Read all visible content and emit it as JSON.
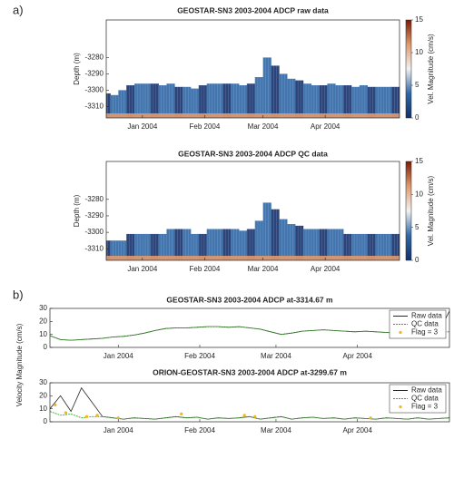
{
  "panel_labels": [
    "a)",
    "b)"
  ],
  "chart_data": [
    {
      "type": "heatmap",
      "title": "GEOSTAR-SN3 2003-2004 ADCP raw data",
      "ylabel": "Depth (m)",
      "zlabel": "Vel. Magnitude (cm/s)",
      "x": [
        -18,
        -14,
        -10,
        -6,
        -2,
        2,
        6,
        10,
        14,
        18,
        22,
        26,
        30,
        34,
        38,
        42,
        46,
        50,
        54,
        58,
        62,
        66,
        70,
        74,
        78,
        82,
        86,
        90,
        94,
        98,
        102,
        106,
        110,
        114,
        118,
        122,
        126
      ],
      "values": [
        -3302,
        -3303,
        -3300,
        -3297,
        -3296,
        -3296,
        -3296,
        -3297,
        -3296,
        -3298,
        -3298,
        -3299,
        -3297,
        -3296,
        -3296,
        -3296,
        -3296,
        -3297,
        -3296,
        -3292,
        -3280,
        -3285,
        -3290,
        -3293,
        -3294,
        -3296,
        -3297,
        -3297,
        -3296,
        -3297,
        -3297,
        -3298,
        -3297,
        -3298,
        -3298,
        -3298,
        -3298
      ],
      "xlim": [
        -18,
        128
      ],
      "xticks": [
        {
          "value": 0,
          "label": "Jan 2004"
        },
        {
          "value": 31,
          "label": "Feb 2004"
        },
        {
          "value": 60,
          "label": "Mar 2004"
        },
        {
          "value": 91,
          "label": "Apr 2004"
        }
      ],
      "ylim": [
        -3317,
        -3257
      ],
      "yticks": [
        -3280,
        -3290,
        -3300,
        -3310
      ],
      "zlim": [
        0,
        15
      ],
      "zticks": [
        0,
        5,
        10,
        15
      ],
      "colormap": [
        "#14306b",
        "#2f67a6",
        "#f2f2f2",
        "#e09a6e",
        "#7a1c05"
      ]
    },
    {
      "type": "heatmap",
      "title": "GEOSTAR-SN3 2003-2004 ADCP QC data",
      "ylabel": "Depth (m)",
      "zlabel": "Vel. Magnitude (cm/s)",
      "x": [
        -18,
        -14,
        -10,
        -6,
        -2,
        2,
        6,
        10,
        14,
        18,
        22,
        26,
        30,
        34,
        38,
        42,
        46,
        50,
        54,
        58,
        62,
        66,
        70,
        74,
        78,
        82,
        86,
        90,
        94,
        98,
        102,
        106,
        110,
        114,
        118,
        122,
        126
      ],
      "values": [
        -3305,
        -3305,
        -3305,
        -3301,
        -3301,
        -3301,
        -3301,
        -3301,
        -3298,
        -3298,
        -3298,
        -3301,
        -3301,
        -3298,
        -3298,
        -3298,
        -3298,
        -3299,
        -3298,
        -3293,
        -3282,
        -3286,
        -3292,
        -3295,
        -3296,
        -3298,
        -3298,
        -3298,
        -3298,
        -3298,
        -3301,
        -3301,
        -3301,
        -3301,
        -3301,
        -3301,
        -3301
      ],
      "xlim": [
        -18,
        128
      ],
      "xticks": [
        {
          "value": 0,
          "label": "Jan 2004"
        },
        {
          "value": 31,
          "label": "Feb 2004"
        },
        {
          "value": 60,
          "label": "Mar 2004"
        },
        {
          "value": 91,
          "label": "Apr 2004"
        }
      ],
      "ylim": [
        -3317,
        -3257
      ],
      "yticks": [
        -3280,
        -3290,
        -3300,
        -3310
      ],
      "zlim": [
        0,
        15
      ],
      "zticks": [
        0,
        5,
        10,
        15
      ],
      "colormap": [
        "#14306b",
        "#2f67a6",
        "#f2f2f2",
        "#e09a6e",
        "#7a1c05"
      ]
    },
    {
      "type": "line",
      "title": "GEOSTAR-SN3 2003-2004 ADCP at-3314.67 m",
      "ylabel": "Velocity Magnitude (cm/s)",
      "legend": "upper right",
      "xlim": [
        -26,
        126
      ],
      "xticks": [
        {
          "value": 0,
          "label": "Jan 2004"
        },
        {
          "value": 31,
          "label": "Feb 2004"
        },
        {
          "value": 60,
          "label": "Mar 2004"
        },
        {
          "value": 91,
          "label": "Apr 2004"
        }
      ],
      "ylim": [
        0,
        30
      ],
      "yticks": [
        0,
        10,
        20,
        30
      ],
      "series": [
        {
          "name": "Raw data",
          "color": "#262626",
          "style": "solid",
          "x": [
            -26,
            -22,
            -18,
            -14,
            -10,
            -6,
            -2,
            2,
            6,
            10,
            14,
            18,
            22,
            26,
            30,
            34,
            38,
            42,
            46,
            50,
            54,
            58,
            62,
            66,
            70,
            74,
            78,
            82,
            86,
            90,
            94,
            98,
            102,
            106,
            110,
            114,
            118,
            122,
            126
          ],
          "values": [
            9,
            6,
            5.5,
            6,
            6.5,
            7,
            8,
            8.5,
            9.5,
            11,
            13,
            14.5,
            15,
            15,
            15.5,
            16,
            16,
            15.5,
            16,
            15,
            14,
            12,
            10,
            11,
            12.5,
            13,
            13.5,
            13,
            12.5,
            12,
            12.5,
            12,
            11.5,
            11,
            11,
            10.5,
            11,
            12,
            28
          ]
        },
        {
          "name": "QC data",
          "color": "#3aa32a",
          "style": "dashed",
          "x": [
            -26,
            -22,
            -18,
            -14,
            -10,
            -6,
            -2,
            2,
            6,
            10,
            14,
            18,
            22,
            26,
            30,
            34,
            38,
            42,
            46,
            50,
            54,
            58,
            62,
            66,
            70,
            74,
            78,
            82,
            86,
            90,
            94,
            98,
            102,
            106,
            110,
            114,
            118,
            122,
            126
          ],
          "values": [
            9,
            6,
            5.5,
            6,
            6.5,
            7,
            8,
            8.5,
            9.5,
            11,
            13,
            14.5,
            15,
            15,
            15.5,
            16,
            16,
            15.5,
            16,
            15,
            14,
            12,
            10,
            11,
            12.5,
            13,
            13.5,
            13,
            12.5,
            12,
            12.5,
            12,
            11.5,
            11,
            11,
            10.5,
            11,
            12,
            12
          ]
        },
        {
          "name": "Flag = 3",
          "color": "#f2b51a",
          "style": "points",
          "x": [
            118,
            124
          ],
          "values": [
            11,
            12
          ]
        }
      ]
    },
    {
      "type": "line",
      "title": "ORION-GEOSTAR-SN3 2003-2004 ADCP at-3299.67 m",
      "legend": "upper right",
      "xlim": [
        -26,
        126
      ],
      "xticks": [
        {
          "value": 0,
          "label": "Jan 2004"
        },
        {
          "value": 31,
          "label": "Feb 2004"
        },
        {
          "value": 60,
          "label": "Mar 2004"
        },
        {
          "value": 91,
          "label": "Apr 2004"
        }
      ],
      "ylim": [
        0,
        30
      ],
      "yticks": [
        0,
        10,
        20,
        30
      ],
      "series": [
        {
          "name": "Raw data",
          "color": "#262626",
          "style": "solid",
          "x": [
            -26,
            -22,
            -18,
            -14,
            -10,
            -6,
            -2,
            2,
            6,
            10,
            14,
            18,
            22,
            26,
            30,
            34,
            38,
            42,
            46,
            50,
            54,
            58,
            62,
            66,
            70,
            74,
            78,
            82,
            86,
            90,
            94,
            98,
            102,
            106,
            110,
            114,
            118,
            122,
            126
          ],
          "values": [
            10,
            20,
            8,
            26,
            15,
            4,
            3,
            2,
            3,
            2.5,
            2,
            3,
            4,
            3,
            3.5,
            2,
            3,
            2.5,
            3,
            4,
            2,
            3,
            4,
            2,
            3,
            3.5,
            2.5,
            3,
            2,
            3,
            2.5,
            2,
            3,
            2.5,
            2,
            3,
            2,
            2.5,
            3
          ]
        },
        {
          "name": "QC data",
          "color": "#3aa32a",
          "style": "dashed",
          "x": [
            -26,
            -22,
            -18,
            -14,
            -10,
            -6,
            -2,
            2,
            6,
            10,
            14,
            18,
            22,
            26,
            30,
            34,
            38,
            42,
            46,
            50,
            54,
            58,
            62,
            66,
            70,
            74,
            78,
            82,
            86,
            90,
            94,
            98,
            102,
            106,
            110,
            114,
            118,
            122,
            126
          ],
          "values": [
            8,
            5,
            6,
            3,
            4,
            4,
            3,
            2,
            3,
            2.5,
            2,
            3,
            4,
            3,
            3.5,
            2,
            3,
            2.5,
            3,
            4,
            2,
            3,
            4,
            2,
            3,
            3.5,
            2.5,
            3,
            2,
            3,
            2.5,
            2,
            3,
            2.5,
            2,
            3,
            2,
            2.5,
            3
          ]
        },
        {
          "name": "Flag = 3",
          "color": "#f2b51a",
          "style": "points",
          "x": [
            -24,
            -20,
            -12,
            -8,
            0,
            24,
            48,
            52,
            96
          ],
          "values": [
            13,
            7,
            4,
            5,
            3,
            6,
            5,
            4,
            3
          ]
        }
      ]
    }
  ]
}
